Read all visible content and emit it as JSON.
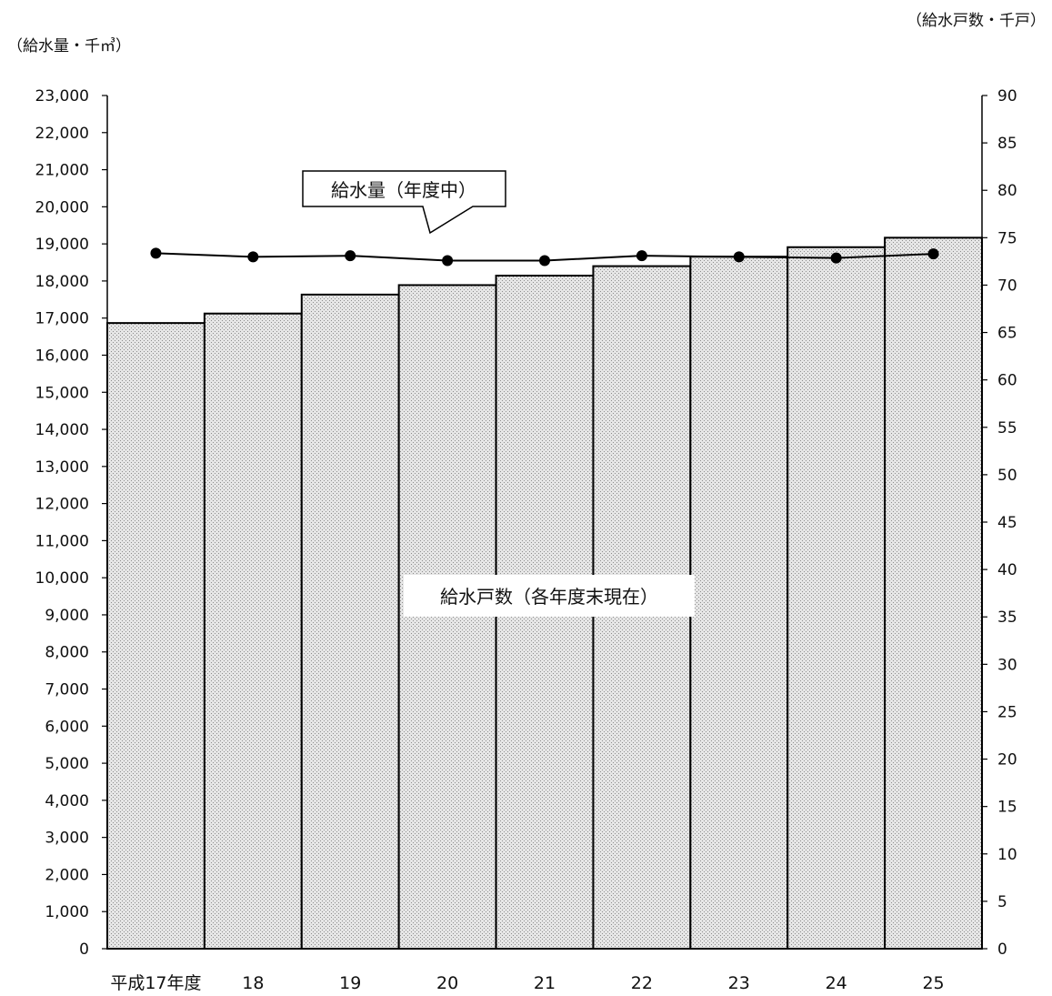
{
  "chart_data": {
    "type": "bar",
    "categories": [
      "平成17年度",
      "18",
      "19",
      "20",
      "21",
      "22",
      "23",
      "24",
      "25"
    ],
    "left_axis": {
      "unit_label": "（給水量・千㎥）",
      "min": 0,
      "max": 23000,
      "step": 1000,
      "tick_labels": [
        "0",
        "1,000",
        "2,000",
        "3,000",
        "4,000",
        "5,000",
        "6,000",
        "7,000",
        "8,000",
        "9,000",
        "10,000",
        "11,000",
        "12,000",
        "13,000",
        "14,000",
        "15,000",
        "16,000",
        "17,000",
        "18,000",
        "19,000",
        "20,000",
        "21,000",
        "22,000",
        "23,000"
      ]
    },
    "right_axis": {
      "unit_label": "（給水戸数・千戸）",
      "min": 0,
      "max": 90,
      "step": 5,
      "tick_labels": [
        "0",
        "5",
        "10",
        "15",
        "20",
        "25",
        "30",
        "35",
        "40",
        "45",
        "50",
        "55",
        "60",
        "65",
        "70",
        "75",
        "80",
        "85",
        "90"
      ]
    },
    "series": [
      {
        "name": "給水戸数（各年度末現在）",
        "kind": "bar",
        "axis": "right",
        "values": [
          66.0,
          67.0,
          69.0,
          70.0,
          71.0,
          72.0,
          73.0,
          74.0,
          75.0
        ]
      },
      {
        "name": "給水量（年度中）",
        "kind": "line",
        "axis": "left",
        "values": [
          18750,
          18650,
          18680,
          18550,
          18550,
          18680,
          18650,
          18620,
          18730
        ]
      }
    ],
    "grid": false,
    "colors": {
      "bar_fill": "#d3d3d3",
      "bar_stroke": "#000000",
      "line": "#000000"
    }
  }
}
